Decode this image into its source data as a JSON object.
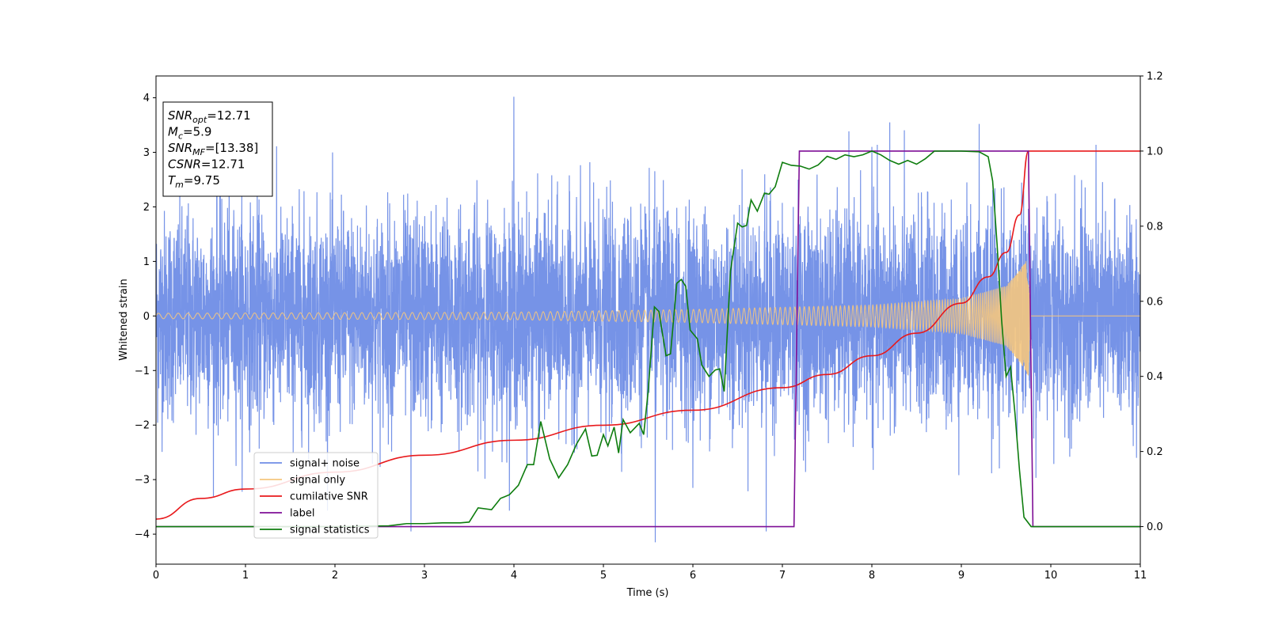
{
  "chart_data": {
    "type": "line",
    "xlabel": "Time (s)",
    "ylabel": "Whitened strain",
    "xlim": [
      0,
      11
    ],
    "ylim_left": [
      -4.55,
      4.4
    ],
    "ylim_right": [
      -0.1,
      1.2
    ],
    "x_ticks": [
      "0",
      "1",
      "2",
      "3",
      "4",
      "5",
      "6",
      "7",
      "8",
      "9",
      "10",
      "11"
    ],
    "y_ticks_left": [
      "4",
      "3",
      "2",
      "1",
      "0",
      "−1",
      "−2",
      "−3",
      "−4"
    ],
    "y_ticks_right": [
      "1.2",
      "1.0",
      "0.8",
      "0.6",
      "0.4",
      "0.2",
      "0.0"
    ],
    "grid": false,
    "legend_position": "lower-left",
    "annotation": {
      "lines": [
        {
          "base": "SNR",
          "sub": "opt",
          "value": "=12.71"
        },
        {
          "base": "M",
          "sub": "c",
          "value": "=5.9"
        },
        {
          "base": "SNR",
          "sub": "MF",
          "value": "=[13.38]"
        },
        {
          "base": "CSNR",
          "sub": "",
          "value": "=12.71"
        },
        {
          "base": "T",
          "sub": "m",
          "value": "=9.75"
        }
      ]
    },
    "series": [
      {
        "name": "signal+ noise",
        "color": "#6f8de6",
        "axis": "left",
        "kind": "noise",
        "x_range": [
          0,
          11
        ],
        "std": 0.95,
        "range": [
          -4.15,
          4.02
        ],
        "notable_points": [
          [
            0.68,
            3.55
          ],
          [
            4.0,
            4.02
          ],
          [
            5.58,
            -4.15
          ],
          [
            8.2,
            3.55
          ],
          [
            9.2,
            3.52
          ],
          [
            2.85,
            -3.95
          ],
          [
            6.82,
            -3.95
          ],
          [
            8.0,
            3.1
          ]
        ]
      },
      {
        "name": "signal only",
        "color": "#f5c77e",
        "axis": "left",
        "kind": "chirp",
        "x_range": [
          0,
          11
        ],
        "t_merger": 9.75,
        "amplitude_samples": [
          [
            0.0,
            0.05
          ],
          [
            2.0,
            0.06
          ],
          [
            4.0,
            0.07
          ],
          [
            6.0,
            0.12
          ],
          [
            8.0,
            0.2
          ],
          [
            9.0,
            0.32
          ],
          [
            9.5,
            0.55
          ],
          [
            9.7,
            0.95
          ],
          [
            9.75,
            1.1
          ],
          [
            9.77,
            0.0
          ],
          [
            11.0,
            0.0
          ]
        ]
      },
      {
        "name": "cumilative SNR",
        "color": "#e8191c",
        "axis": "right",
        "kind": "line",
        "points": [
          [
            0.0,
            0.02
          ],
          [
            0.5,
            0.075
          ],
          [
            1.0,
            0.1
          ],
          [
            2.0,
            0.145
          ],
          [
            3.0,
            0.19
          ],
          [
            4.0,
            0.23
          ],
          [
            5.0,
            0.27
          ],
          [
            6.0,
            0.31
          ],
          [
            7.0,
            0.37
          ],
          [
            7.5,
            0.405
          ],
          [
            8.0,
            0.455
          ],
          [
            8.5,
            0.515
          ],
          [
            9.0,
            0.595
          ],
          [
            9.3,
            0.665
          ],
          [
            9.5,
            0.73
          ],
          [
            9.65,
            0.83
          ],
          [
            9.75,
            1.0
          ],
          [
            11.0,
            1.0
          ]
        ]
      },
      {
        "name": "label",
        "color": "#7f0f96",
        "axis": "right",
        "kind": "line",
        "points": [
          [
            0.0,
            0.0
          ],
          [
            7.13,
            0.0
          ],
          [
            7.19,
            1.0
          ],
          [
            9.75,
            1.0
          ],
          [
            9.8,
            0.0
          ],
          [
            11.0,
            0.0
          ]
        ]
      },
      {
        "name": "signal statistics",
        "color": "#0e7d0e",
        "axis": "right",
        "kind": "line",
        "points": [
          [
            0.0,
            0.0
          ],
          [
            1.0,
            0.0
          ],
          [
            2.0,
            0.0
          ],
          [
            2.6,
            0.002
          ],
          [
            2.8,
            0.008
          ],
          [
            3.0,
            0.008
          ],
          [
            3.2,
            0.01
          ],
          [
            3.4,
            0.01
          ],
          [
            3.5,
            0.012
          ],
          [
            3.6,
            0.05
          ],
          [
            3.75,
            0.045
          ],
          [
            3.85,
            0.075
          ],
          [
            3.95,
            0.085
          ],
          [
            4.05,
            0.11
          ],
          [
            4.15,
            0.165
          ],
          [
            4.22,
            0.165
          ],
          [
            4.3,
            0.28
          ],
          [
            4.4,
            0.18
          ],
          [
            4.5,
            0.13
          ],
          [
            4.6,
            0.165
          ],
          [
            4.7,
            0.22
          ],
          [
            4.8,
            0.26
          ],
          [
            4.87,
            0.188
          ],
          [
            4.93,
            0.19
          ],
          [
            5.0,
            0.245
          ],
          [
            5.05,
            0.215
          ],
          [
            5.12,
            0.265
          ],
          [
            5.17,
            0.196
          ],
          [
            5.22,
            0.285
          ],
          [
            5.3,
            0.25
          ],
          [
            5.4,
            0.275
          ],
          [
            5.45,
            0.245
          ],
          [
            5.5,
            0.36
          ],
          [
            5.57,
            0.585
          ],
          [
            5.62,
            0.573
          ],
          [
            5.7,
            0.455
          ],
          [
            5.75,
            0.46
          ],
          [
            5.82,
            0.648
          ],
          [
            5.87,
            0.658
          ],
          [
            5.92,
            0.64
          ],
          [
            5.97,
            0.523
          ],
          [
            6.05,
            0.5
          ],
          [
            6.1,
            0.43
          ],
          [
            6.18,
            0.4
          ],
          [
            6.25,
            0.417
          ],
          [
            6.3,
            0.42
          ],
          [
            6.35,
            0.36
          ],
          [
            6.42,
            0.68
          ],
          [
            6.5,
            0.808
          ],
          [
            6.55,
            0.798
          ],
          [
            6.6,
            0.802
          ],
          [
            6.65,
            0.87
          ],
          [
            6.72,
            0.84
          ],
          [
            6.8,
            0.888
          ],
          [
            6.85,
            0.885
          ],
          [
            6.92,
            0.905
          ],
          [
            7.0,
            0.97
          ],
          [
            7.1,
            0.962
          ],
          [
            7.2,
            0.96
          ],
          [
            7.3,
            0.952
          ],
          [
            7.4,
            0.963
          ],
          [
            7.5,
            0.986
          ],
          [
            7.6,
            0.978
          ],
          [
            7.7,
            0.99
          ],
          [
            7.8,
            0.985
          ],
          [
            7.9,
            0.99
          ],
          [
            8.0,
            1.0
          ],
          [
            8.1,
            0.99
          ],
          [
            8.2,
            0.975
          ],
          [
            8.3,
            0.965
          ],
          [
            8.4,
            0.975
          ],
          [
            8.5,
            0.965
          ],
          [
            8.6,
            0.98
          ],
          [
            8.7,
            1.0
          ],
          [
            9.0,
            1.0
          ],
          [
            9.2,
            0.998
          ],
          [
            9.3,
            0.985
          ],
          [
            9.35,
            0.92
          ],
          [
            9.4,
            0.75
          ],
          [
            9.45,
            0.55
          ],
          [
            9.5,
            0.4
          ],
          [
            9.55,
            0.425
          ],
          [
            9.6,
            0.3
          ],
          [
            9.65,
            0.15
          ],
          [
            9.7,
            0.025
          ],
          [
            9.78,
            0.0
          ],
          [
            11.0,
            0.0
          ]
        ]
      }
    ]
  }
}
